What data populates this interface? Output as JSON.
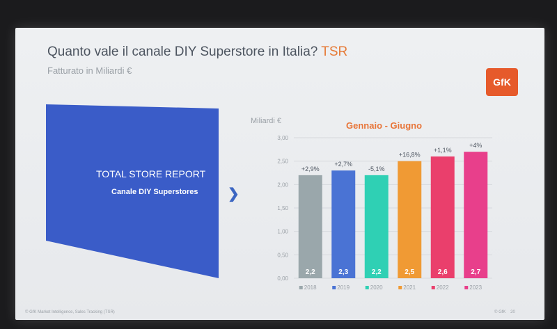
{
  "slide": {
    "title": "Quanto vale il canale DIY Superstore in Italia?",
    "title_tag": "TSR",
    "subtitle": "Fatturato in Miliardi €",
    "logo": "GfK",
    "panel_title": "TOTAL STORE REPORT",
    "panel_subtitle": "Canale DIY Superstores",
    "chevron_icon": "chevron-right-icon",
    "footer": "© GfK Market Intelligence, Sales Tracking (TSR)",
    "footer_right": "© GfK",
    "page_number": "20"
  },
  "colors": {
    "panel": "#3a5cc8",
    "title_tag": "#e67a36",
    "chart_title": "#e8763a",
    "logo": "#e65a2b"
  },
  "chart_data": {
    "type": "bar",
    "title": "Gennaio - Giugno",
    "ylabel": "Miliardi €",
    "xlabel": "",
    "ylim": [
      0,
      3
    ],
    "yticks": [
      "3,00",
      "2,50",
      "2,00",
      "1,50",
      "1,00",
      "0,50",
      "0,00"
    ],
    "categories": [
      "2018",
      "2019",
      "2020",
      "2021",
      "2022",
      "2023"
    ],
    "values": [
      2.2,
      2.3,
      2.2,
      2.5,
      2.6,
      2.7
    ],
    "value_labels": [
      "2,2",
      "2,3",
      "2,2",
      "2,5",
      "2,6",
      "2,7"
    ],
    "growth_labels": [
      "+2,9%",
      "+2,7%",
      "-5,1%",
      "+16,8%",
      "+1,1%",
      "+4%"
    ],
    "colors": [
      "#9aa7ab",
      "#4a73d4",
      "#2fd0b4",
      "#f09a34",
      "#ea3f6c",
      "#e83f8b"
    ],
    "grid": true,
    "legend": "bottom"
  }
}
